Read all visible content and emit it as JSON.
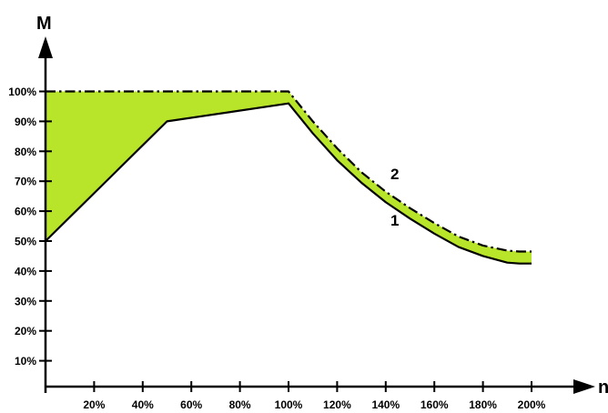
{
  "chart_data": {
    "type": "line",
    "ylabel": "M",
    "xlabel": "n",
    "xlim": [
      0,
      215
    ],
    "ylim": [
      0,
      120
    ],
    "xticks": [
      "20%",
      "40%",
      "60%",
      "80%",
      "100%",
      "120%",
      "140%",
      "160%",
      "180%",
      "200%"
    ],
    "xtick_values": [
      20,
      40,
      60,
      80,
      100,
      120,
      140,
      160,
      180,
      200
    ],
    "yticks": [
      "10%",
      "20%",
      "30%",
      "40%",
      "50%",
      "60%",
      "70%",
      "80%",
      "90%",
      "100%"
    ],
    "ytick_values": [
      10,
      20,
      30,
      40,
      50,
      60,
      70,
      80,
      90,
      100
    ],
    "series": [
      {
        "name": "1",
        "style": "solid",
        "x": [
          0,
          50,
          100,
          110,
          120,
          130,
          140,
          150,
          160,
          170,
          180,
          190,
          195,
          200
        ],
        "y": [
          50,
          90,
          96,
          86,
          77,
          69.5,
          63,
          57.5,
          52.5,
          48,
          45,
          42.8,
          42.5,
          42.5
        ]
      },
      {
        "name": "2",
        "style": "dash-dot",
        "x": [
          0,
          100,
          110,
          120,
          130,
          140,
          150,
          160,
          170,
          180,
          190,
          195,
          200
        ],
        "y": [
          100,
          100,
          90,
          81,
          73,
          66.5,
          61,
          56,
          51.5,
          48.5,
          46.8,
          46.5,
          46.5
        ]
      }
    ],
    "fill_color": "#b8e52a",
    "fill_region": "between series 1 and series 2",
    "grid": false
  }
}
